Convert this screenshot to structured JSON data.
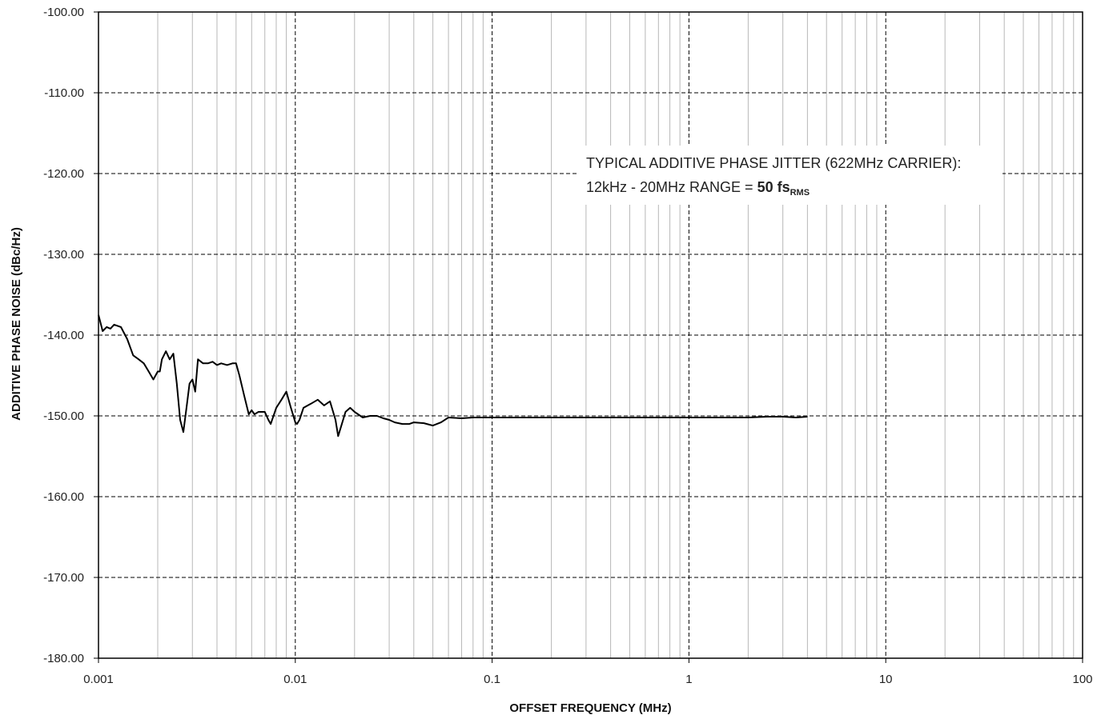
{
  "chart_data": {
    "type": "line",
    "title": "",
    "xlabel": "OFFSET FREQUENCY (MHz)",
    "ylabel": "ADDITIVE PHASE NOISE (dBc/Hz)",
    "xscale": "log",
    "xlim": [
      0.001,
      100
    ],
    "ylim": [
      -180,
      -100
    ],
    "x_ticks": [
      "0.001",
      "0.01",
      "0.1",
      "1",
      "10",
      "100"
    ],
    "y_ticks": [
      "-100.00",
      "-110.00",
      "-120.00",
      "-130.00",
      "-140.00",
      "-150.00",
      "-160.00",
      "-170.00",
      "-180.00"
    ],
    "grid": "major dashed, minor solid (log decades)",
    "legend": "none",
    "line_color": "#000000",
    "annotation": {
      "line1": "TYPICAL ADDITIVE  PHASE JITTER (622MHz CARRIER):",
      "line2_prefix": "12kHz - 20MHz RANGE = ",
      "value": "50 fs",
      "value_sub": "RMS"
    },
    "series": [
      {
        "x": [
          0.001,
          0.00105,
          0.0011,
          0.00115,
          0.0012,
          0.0013,
          0.0014,
          0.0015,
          0.0016,
          0.0017,
          0.0018,
          0.0019,
          0.002,
          0.00205,
          0.0021,
          0.0022,
          0.0023,
          0.0024,
          0.0025,
          0.0026,
          0.0027,
          0.0028,
          0.0029,
          0.003,
          0.0031,
          0.0032,
          0.0034,
          0.0036,
          0.0038,
          0.004,
          0.0042,
          0.0045,
          0.0048,
          0.005,
          0.0052,
          0.0055,
          0.0058,
          0.006,
          0.0062,
          0.0065,
          0.007,
          0.0073,
          0.0075,
          0.008,
          0.0085,
          0.009,
          0.0095,
          0.01,
          0.0102,
          0.0105,
          0.011,
          0.012,
          0.013,
          0.014,
          0.015,
          0.016,
          0.0165,
          0.017,
          0.018,
          0.019,
          0.02,
          0.022,
          0.024,
          0.026,
          0.028,
          0.03,
          0.032,
          0.035,
          0.038,
          0.04,
          0.045,
          0.05,
          0.055,
          0.06,
          0.07,
          0.08,
          0.1,
          0.15,
          0.2,
          0.3,
          0.5,
          0.7,
          1,
          1.5,
          2,
          2.5,
          3,
          3.5,
          4
        ],
        "y": [
          -137.5,
          -139.5,
          -139,
          -139.2,
          -138.7,
          -139,
          -140.5,
          -142.5,
          -143,
          -143.5,
          -144.5,
          -145.5,
          -144.5,
          -144.5,
          -143,
          -142,
          -143,
          -142.3,
          -146,
          -150.5,
          -152,
          -149,
          -146,
          -145.5,
          -147,
          -143,
          -143.5,
          -143.5,
          -143.3,
          -143.7,
          -143.5,
          -143.7,
          -143.5,
          -143.5,
          -145,
          -147.5,
          -149.8,
          -149.3,
          -149.8,
          -149.5,
          -149.5,
          -150.5,
          -151,
          -149,
          -148,
          -147,
          -149,
          -150.8,
          -151,
          -150.5,
          -149,
          -148.5,
          -148,
          -148.7,
          -148.2,
          -150.5,
          -152.5,
          -151.5,
          -149.5,
          -149,
          -149.5,
          -150.2,
          -150,
          -150,
          -150.3,
          -150.5,
          -150.8,
          -151,
          -151,
          -150.8,
          -150.9,
          -151.2,
          -150.8,
          -150.2,
          -150.3,
          -150.2,
          -150.2,
          -150.2,
          -150.2,
          -150.2,
          -150.2,
          -150.2,
          -150.2,
          -150.2,
          -150.2,
          -150.1,
          -150.1,
          -150.2,
          -150.1
        ]
      }
    ]
  }
}
